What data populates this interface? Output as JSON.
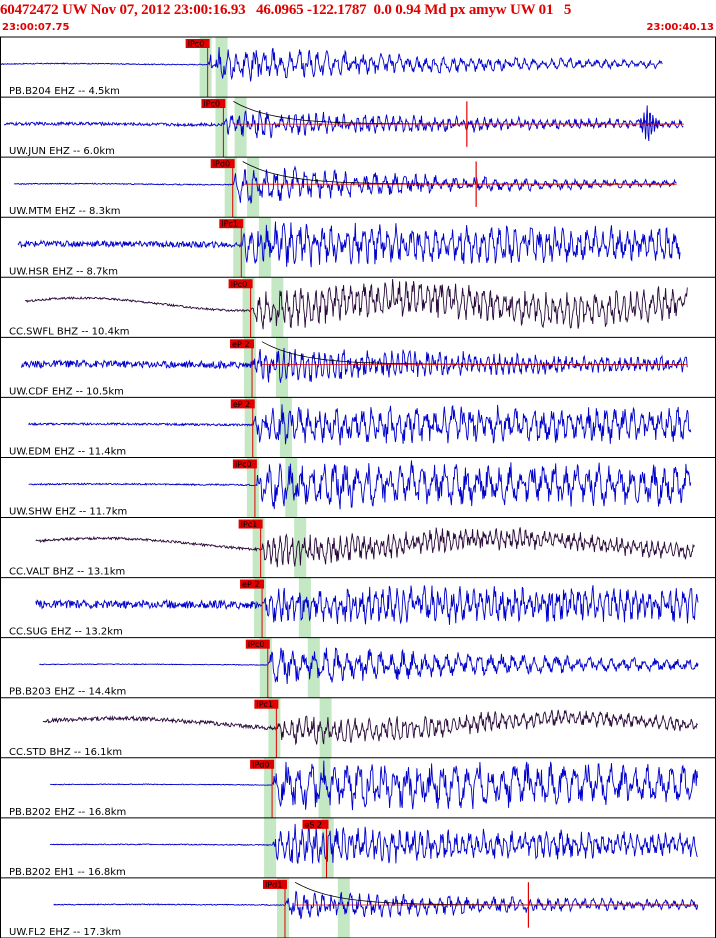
{
  "header": {
    "title": "60472472 UW Nov 07, 2012 23:00:16.93   46.0965 -122.1787  0.0 0.94 Md px amyw UW 01   5",
    "start_time": "23:00:07.75",
    "end_time": "23:00:40.13"
  },
  "colors": {
    "header_text": "#e00000",
    "trace_blue": "#0000cc",
    "trace_dark": "#2a0a3a",
    "pick_box": "#e00000",
    "pick_line": "#e00000",
    "coda_fit": "#000000",
    "arrival_window": "#b9e4b9"
  },
  "chart_data": {
    "type": "line",
    "title": "60472472 UW Nov 07, 2012 23:00:16.93   46.0965 -122.1787  0.0 0.94 Md px amyw UW 01   5",
    "x_start": "23:00:07.75",
    "x_end": "23:00:40.13",
    "series": [
      {
        "name": "PB.B204 EHZ -- 4.5km",
        "label": "PB.B204 EHZ -- 4.5km",
        "color": "blue",
        "pick": "IPc0",
        "pick2": "",
        "pick_frac": 0.29,
        "start_frac": 0.0,
        "end_frac": 0.925,
        "noise": 0.02,
        "amp": 0.7,
        "decay": 0.55,
        "period": 9,
        "coda": false,
        "spike": false,
        "event": false
      },
      {
        "name": "UW.JUN EHZ -- 6.0km",
        "label": "UW.JUN EHZ -- 6.0km",
        "color": "blue",
        "pick": "IPc0",
        "pick2": "",
        "pick_frac": 0.312,
        "start_frac": 0.006,
        "end_frac": 0.955,
        "noise": 0.06,
        "amp": 0.55,
        "decay": 0.45,
        "period": 7,
        "coda": true,
        "spike": true,
        "event": true
      },
      {
        "name": "UW.MTM EHZ -- 8.3km",
        "label": "UW.MTM EHZ -- 8.3km",
        "color": "blue",
        "pick": "IPd0",
        "pick2": "",
        "pick_frac": 0.325,
        "start_frac": 0.02,
        "end_frac": 0.945,
        "noise": 0.02,
        "amp": 0.75,
        "decay": 0.6,
        "period": 10,
        "coda": true,
        "spike": true,
        "event": false
      },
      {
        "name": "UW.HSR EHZ -- 8.7km",
        "label": "UW.HSR EHZ -- 8.7km",
        "color": "blue",
        "pick": "IPc1",
        "pick2": "",
        "pick_frac": 0.337,
        "start_frac": 0.025,
        "end_frac": 0.95,
        "noise": 0.12,
        "amp": 0.8,
        "decay": 0.1,
        "period": 8,
        "coda": false,
        "spike": false,
        "event": false
      },
      {
        "name": "CC.SWFL BHZ -- 10.4km",
        "label": "CC.SWFL BHZ -- 10.4km",
        "color": "dark",
        "pick": "IPc0",
        "pick2": "",
        "pick_frac": 0.35,
        "start_frac": 0.035,
        "end_frac": 0.96,
        "noise": 0.04,
        "amp": 0.7,
        "decay": 0.05,
        "period": 7,
        "coda": false,
        "spike": false,
        "event": false
      },
      {
        "name": "UW.CDF EHZ -- 10.5km",
        "label": "UW.CDF EHZ -- 10.5km",
        "color": "blue",
        "pick": "eP 2",
        "pick2": "",
        "pick_frac": 0.352,
        "start_frac": 0.03,
        "end_frac": 0.96,
        "noise": 0.14,
        "amp": 0.7,
        "decay": 0.35,
        "period": 6,
        "coda": true,
        "spike": false,
        "event": false
      },
      {
        "name": "UW.EDM EHZ -- 11.4km",
        "label": "UW.EDM EHZ -- 11.4km",
        "color": "blue",
        "pick": "eP 2",
        "pick2": "",
        "pick_frac": 0.353,
        "start_frac": 0.04,
        "end_frac": 0.965,
        "noise": 0.04,
        "amp": 0.75,
        "decay": 0.08,
        "period": 9,
        "coda": false,
        "spike": false,
        "event": false
      },
      {
        "name": "UW.SHW EHZ -- 11.7km",
        "label": "UW.SHW EHZ -- 11.7km",
        "color": "blue",
        "pick": "IPc0",
        "pick2": "",
        "pick_frac": 0.356,
        "start_frac": 0.04,
        "end_frac": 0.965,
        "noise": 0.03,
        "amp": 0.85,
        "decay": 0.05,
        "period": 11,
        "coda": false,
        "spike": false,
        "event": false
      },
      {
        "name": "CC.VALT BHZ -- 13.1km",
        "label": "CC.VALT BHZ -- 13.1km",
        "color": "dark",
        "pick": "IPc1",
        "pick2": "",
        "pick_frac": 0.364,
        "start_frac": 0.05,
        "end_frac": 0.97,
        "noise": 0.05,
        "amp": 0.6,
        "decay": 0.25,
        "period": 6,
        "coda": false,
        "spike": false,
        "event": false
      },
      {
        "name": "CC.SUG EHZ -- 13.2km",
        "label": "CC.SUG EHZ -- 13.2km",
        "color": "blue",
        "pick": "eP 2",
        "pick2": "",
        "pick_frac": 0.366,
        "start_frac": 0.05,
        "end_frac": 0.975,
        "noise": 0.16,
        "amp": 0.7,
        "decay": 0.05,
        "period": 7,
        "coda": false,
        "spike": false,
        "event": false
      },
      {
        "name": "PB.B203 EHZ -- 14.4km",
        "label": "PB.B203 EHZ -- 14.4km",
        "color": "blue",
        "pick": "IPc0",
        "pick2": "",
        "pick_frac": 0.374,
        "start_frac": 0.055,
        "end_frac": 0.975,
        "noise": 0.015,
        "amp": 0.8,
        "decay": 0.45,
        "period": 11,
        "coda": false,
        "spike": false,
        "event": false
      },
      {
        "name": "CC.STD BHZ -- 16.1km",
        "label": "CC.STD BHZ -- 16.1km",
        "color": "dark",
        "pick": "IPc1",
        "pick2": "",
        "pick_frac": 0.386,
        "start_frac": 0.06,
        "end_frac": 0.975,
        "noise": 0.08,
        "amp": 0.55,
        "decay": 0.3,
        "period": 7,
        "coda": false,
        "spike": false,
        "event": false
      },
      {
        "name": "PB.B202 EHZ -- 16.8km",
        "label": "PB.B202 EHZ -- 16.8km",
        "color": "blue",
        "pick": "IPd0",
        "pick2": "",
        "pick_frac": 0.38,
        "start_frac": 0.07,
        "end_frac": 0.975,
        "noise": 0.015,
        "amp": 0.9,
        "decay": 0.08,
        "period": 12,
        "coda": false,
        "spike": false,
        "event": false
      },
      {
        "name": "PB.B202 EH1 -- 16.8km",
        "label": "PB.B202 EH1 -- 16.8km",
        "color": "blue",
        "pick": "",
        "pick2": "eS 2",
        "pick_frac": 0.38,
        "pick2_frac": 0.456,
        "start_frac": 0.07,
        "end_frac": 0.975,
        "noise": 0.02,
        "amp": 0.75,
        "decay": 0.2,
        "period": 7,
        "coda": false,
        "spike": false,
        "event": false
      },
      {
        "name": "UW.FL2 EHZ -- 17.3km",
        "label": "UW.FL2 EHZ -- 17.3km",
        "color": "blue",
        "pick": "IPd1",
        "pick2": "",
        "pick_frac": 0.398,
        "start_frac": 0.075,
        "end_frac": 0.975,
        "noise": 0.02,
        "amp": 0.55,
        "decay": 0.4,
        "period": 9,
        "coda": true,
        "spike": true,
        "event": false
      }
    ]
  }
}
